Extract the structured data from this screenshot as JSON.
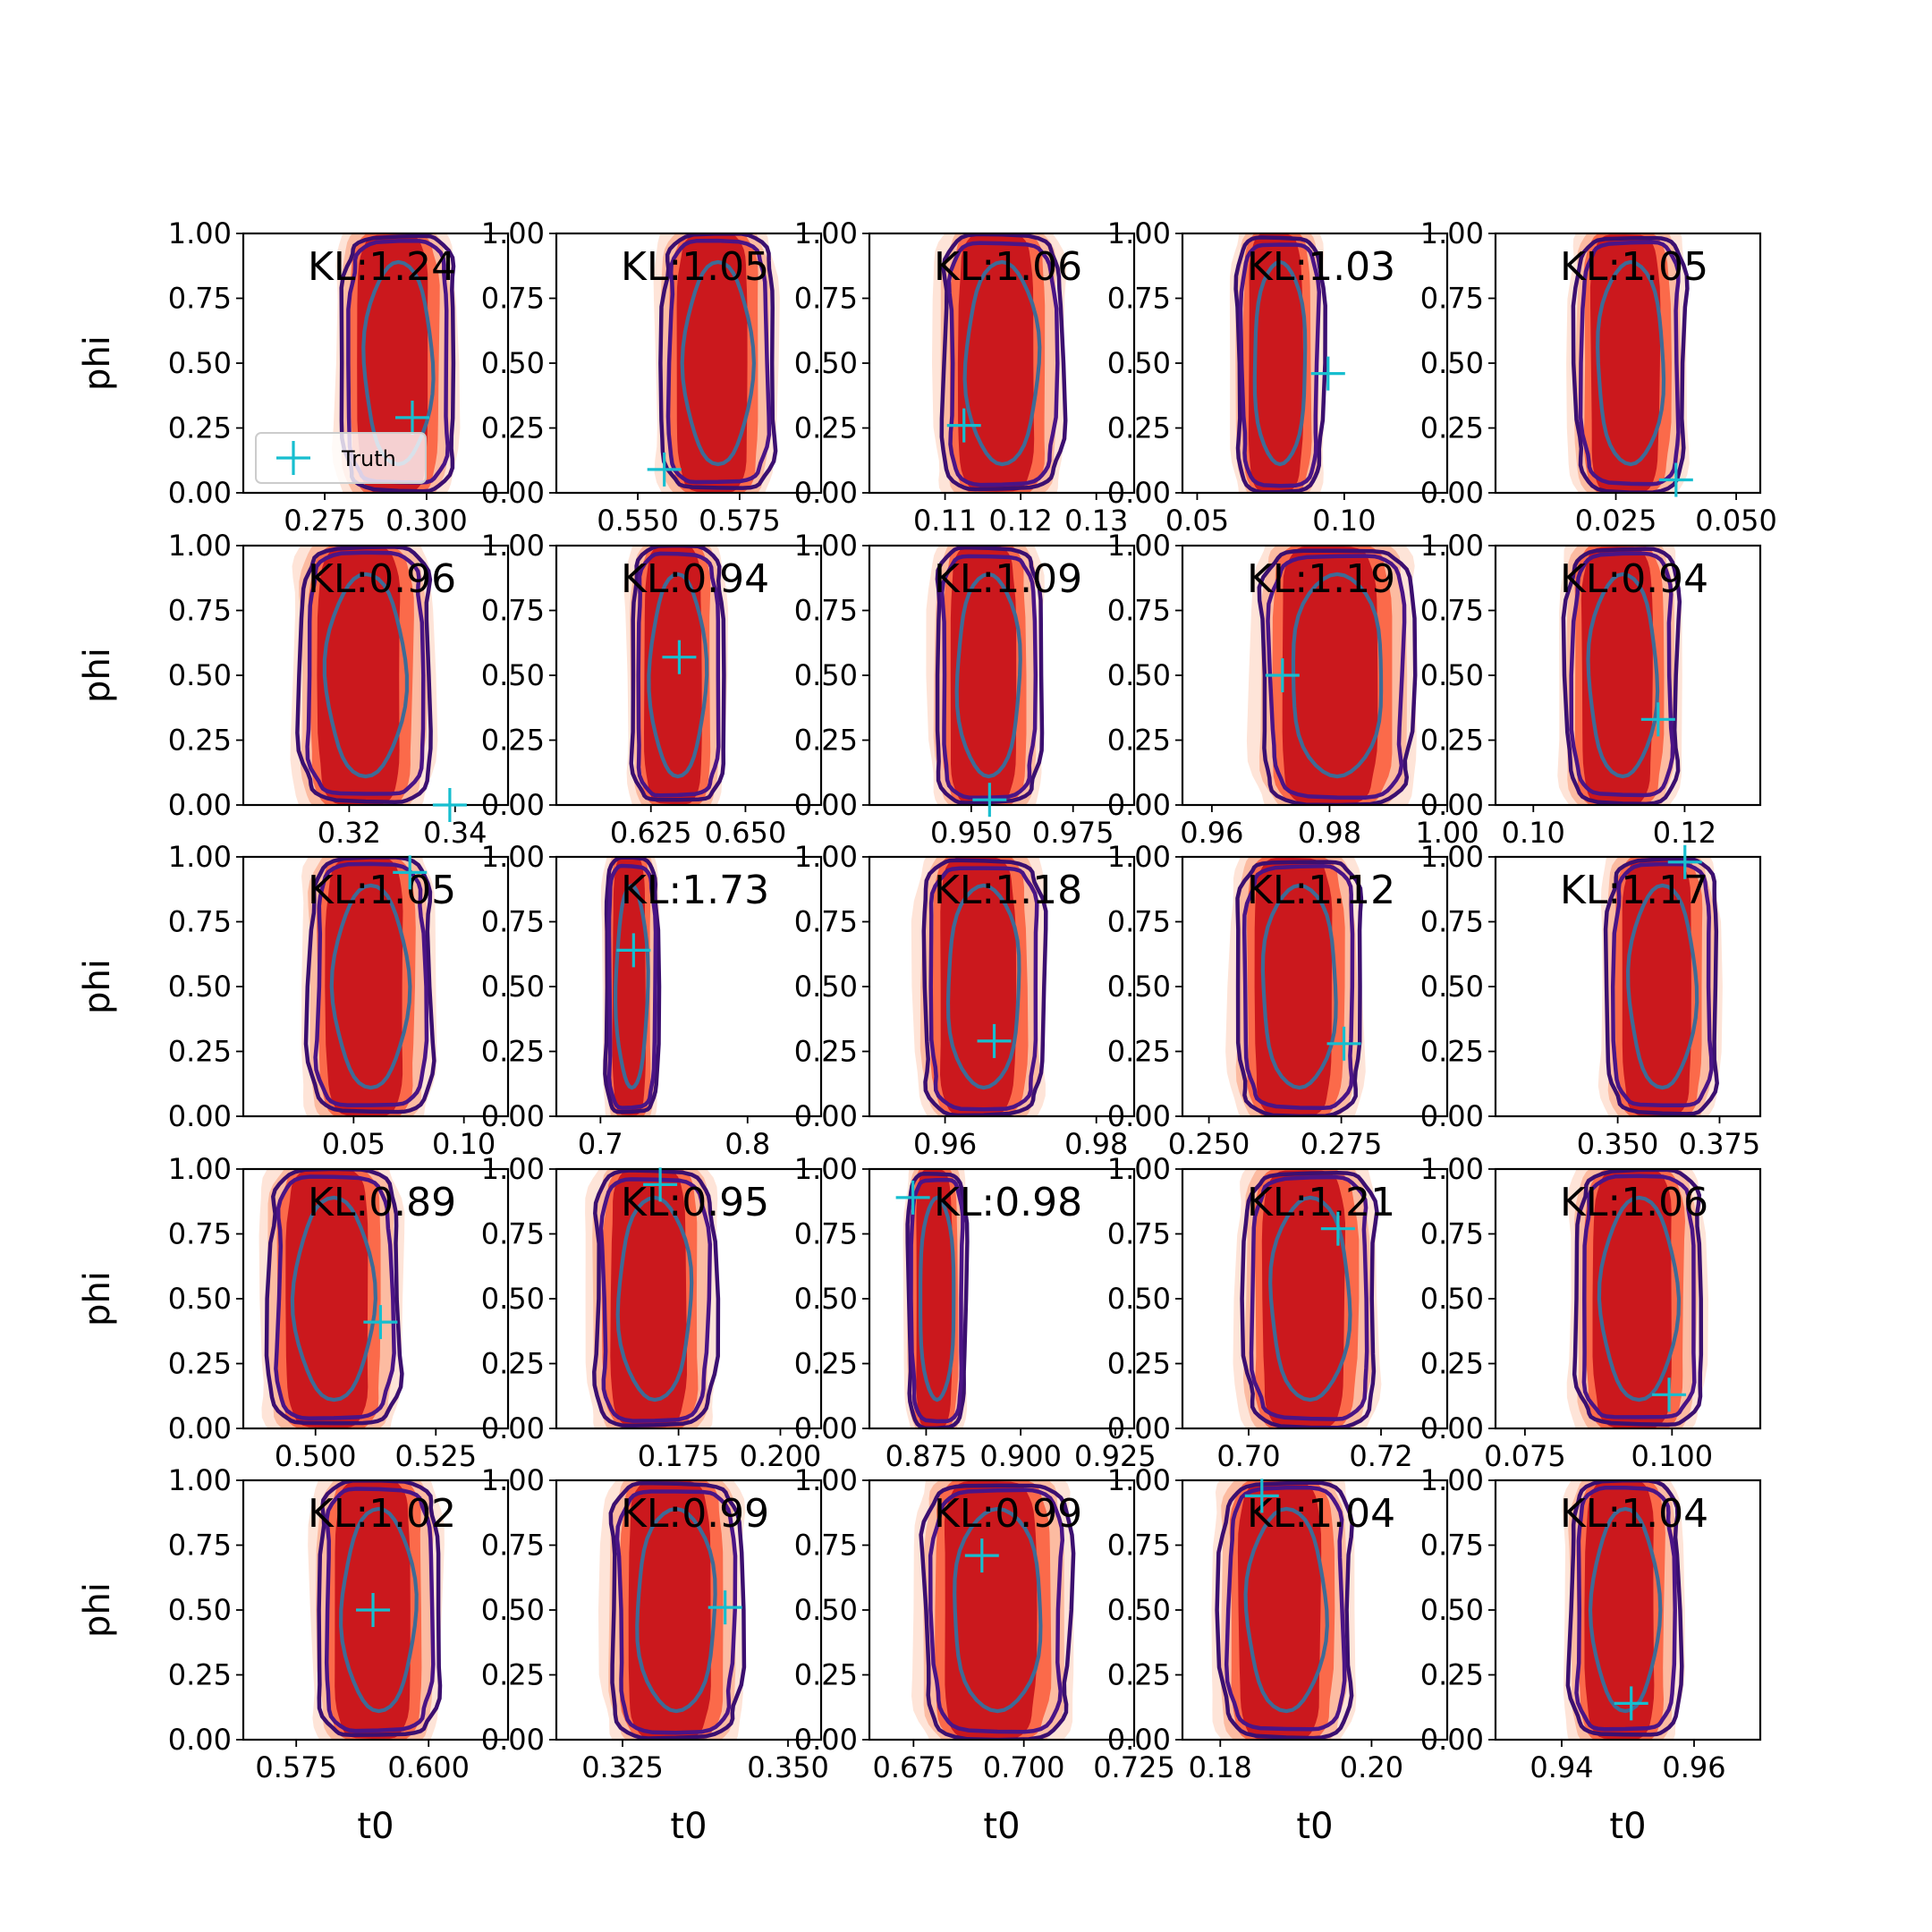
{
  "chart_data": {
    "type": "contour-grid",
    "rows": 5,
    "cols": 5,
    "xlabel": "t0",
    "ylabel": "phi",
    "ylim": [
      0,
      1
    ],
    "yticks": [
      "0.00",
      "0.25",
      "0.50",
      "0.75",
      "1.00"
    ],
    "legend": {
      "label": "Truth",
      "placement": "lower-left",
      "panel": 0
    },
    "colors": {
      "fill_outer": "#fee4d8",
      "fill_mid": "#fcbba1",
      "fill_inner": "#fb6a4a",
      "fill_core": "#cb181d",
      "contour_outer": "#3b0f70",
      "contour_mid": "#4a1486",
      "contour_inner": "#3e6b96",
      "truth": "#17becf"
    },
    "panels": [
      {
        "kl": "KL:1.24",
        "xmin": 0.255,
        "xmax": 0.32,
        "xticks": [
          "0.275",
          "0.300"
        ],
        "xtick_values": [
          0.275,
          0.3
        ],
        "truth": [
          0.2965,
          0.29
        ],
        "cx": 0.575,
        "w": 0.43
      },
      {
        "kl": "KL:1.05",
        "xmin": 0.53,
        "xmax": 0.595,
        "xticks": [
          "0.550",
          "0.575"
        ],
        "xtick_values": [
          0.55,
          0.575
        ],
        "truth": [
          0.5565,
          0.09
        ],
        "cx": 0.6,
        "w": 0.43
      },
      {
        "kl": "KL:1.06",
        "xmin": 0.1,
        "xmax": 0.135,
        "xticks": [
          "0.11",
          "0.12",
          "0.13"
        ],
        "xtick_values": [
          0.11,
          0.12,
          0.13
        ],
        "truth": [
          0.1125,
          0.26
        ],
        "cx": 0.49,
        "w": 0.46
      },
      {
        "kl": "KL:1.03",
        "xmin": 0.045,
        "xmax": 0.135,
        "xticks": [
          "0.05",
          "0.10"
        ],
        "xtick_values": [
          0.05,
          0.1
        ],
        "truth": [
          0.0945,
          0.46
        ],
        "cx": 0.36,
        "w": 0.33
      },
      {
        "kl": "KL:1.05",
        "xmin": 0.0,
        "xmax": 0.055,
        "xticks": [
          "0.025",
          "0.050"
        ],
        "xtick_values": [
          0.025,
          0.05
        ],
        "truth": [
          0.0375,
          0.05
        ],
        "cx": 0.5,
        "w": 0.42
      },
      {
        "kl": "KL:0.96",
        "xmin": 0.3,
        "xmax": 0.35,
        "xticks": [
          "0.32",
          "0.34"
        ],
        "xtick_values": [
          0.32,
          0.34
        ],
        "truth": [
          0.339,
          0.0
        ],
        "cx": 0.45,
        "w": 0.5
      },
      {
        "kl": "KL:0.94",
        "xmin": 0.6,
        "xmax": 0.67,
        "xticks": [
          "0.625",
          "0.650"
        ],
        "xtick_values": [
          0.625,
          0.65
        ],
        "truth": [
          0.6325,
          0.57
        ],
        "cx": 0.45,
        "w": 0.35
      },
      {
        "kl": "KL:1.09",
        "xmin": 0.925,
        "xmax": 0.99,
        "xticks": [
          "0.950",
          "0.975"
        ],
        "xtick_values": [
          0.95,
          0.975
        ],
        "truth": [
          0.9545,
          0.02
        ],
        "cx": 0.44,
        "w": 0.4
      },
      {
        "kl": "KL:1.19",
        "xmin": 0.955,
        "xmax": 1.0,
        "xticks": [
          "0.96",
          "0.98",
          "1.00"
        ],
        "xtick_values": [
          0.96,
          0.98,
          1.0
        ],
        "truth": [
          0.972,
          0.5
        ],
        "cx": 0.57,
        "w": 0.58
      },
      {
        "kl": "KL:0.94",
        "xmin": 0.095,
        "xmax": 0.13,
        "xticks": [
          "0.10",
          "0.12"
        ],
        "xtick_values": [
          0.1,
          0.12
        ],
        "truth": [
          0.1165,
          0.33
        ],
        "cx": 0.47,
        "w": 0.43
      },
      {
        "kl": "KL:1.05",
        "xmin": 0.0,
        "xmax": 0.12,
        "xticks": [
          "0.05",
          "0.10"
        ],
        "xtick_values": [
          0.05,
          0.1
        ],
        "truth": [
          0.0755,
          0.94
        ],
        "cx": 0.47,
        "w": 0.47
      },
      {
        "kl": "KL:1.73",
        "xmin": 0.67,
        "xmax": 0.85,
        "xticks": [
          "0.7",
          "0.8"
        ],
        "xtick_values": [
          0.7,
          0.8
        ],
        "truth": [
          0.7225,
          0.64
        ],
        "cx": 0.28,
        "w": 0.2
      },
      {
        "kl": "KL:1.18",
        "xmin": 0.95,
        "xmax": 0.985,
        "xticks": [
          "0.96",
          "0.98"
        ],
        "xtick_values": [
          0.96,
          0.98
        ],
        "truth": [
          0.9665,
          0.29
        ],
        "cx": 0.42,
        "w": 0.46
      },
      {
        "kl": "KL:1.12",
        "xmin": 0.245,
        "xmax": 0.295,
        "xticks": [
          "0.250",
          "0.275"
        ],
        "xtick_values": [
          0.25,
          0.275
        ],
        "truth": [
          0.2755,
          0.28
        ],
        "cx": 0.43,
        "w": 0.47
      },
      {
        "kl": "KL:1.17",
        "xmin": 0.32,
        "xmax": 0.385,
        "xticks": [
          "0.350",
          "0.375"
        ],
        "xtick_values": [
          0.35,
          0.375
        ],
        "truth": [
          0.3665,
          0.98
        ],
        "cx": 0.62,
        "w": 0.42
      },
      {
        "kl": "KL:0.89",
        "xmin": 0.485,
        "xmax": 0.54,
        "xticks": [
          "0.500",
          "0.525"
        ],
        "xtick_values": [
          0.5,
          0.525
        ],
        "truth": [
          0.5135,
          0.41
        ],
        "cx": 0.33,
        "w": 0.5
      },
      {
        "kl": "KL:0.95",
        "xmin": 0.145,
        "xmax": 0.21,
        "xticks": [
          "0.175",
          "0.200"
        ],
        "xtick_values": [
          0.175,
          0.2
        ],
        "truth": [
          0.1705,
          0.94
        ],
        "cx": 0.36,
        "w": 0.46
      },
      {
        "kl": "KL:0.98",
        "xmin": 0.86,
        "xmax": 0.93,
        "xticks": [
          "0.875",
          "0.900",
          "0.925"
        ],
        "xtick_values": [
          0.875,
          0.9,
          0.925
        ],
        "truth": [
          0.8715,
          0.89
        ],
        "cx": 0.25,
        "w": 0.22
      },
      {
        "kl": "KL:1.21",
        "xmin": 0.69,
        "xmax": 0.73,
        "xticks": [
          "0.70",
          "0.72"
        ],
        "xtick_values": [
          0.7,
          0.72
        ],
        "truth": [
          0.7135,
          0.77
        ],
        "cx": 0.47,
        "w": 0.5
      },
      {
        "kl": "KL:1.06",
        "xmin": 0.07,
        "xmax": 0.115,
        "xticks": [
          "0.075",
          "0.100"
        ],
        "xtick_values": [
          0.075,
          0.1
        ],
        "truth": [
          0.0995,
          0.13
        ],
        "cx": 0.53,
        "w": 0.48
      },
      {
        "kl": "KL:1.02",
        "xmin": 0.565,
        "xmax": 0.615,
        "xticks": [
          "0.575",
          "0.600"
        ],
        "xtick_values": [
          0.575,
          0.6
        ],
        "truth": [
          0.5895,
          0.5
        ],
        "cx": 0.5,
        "w": 0.46
      },
      {
        "kl": "KL:0.99",
        "xmin": 0.315,
        "xmax": 0.355,
        "xticks": [
          "0.325",
          "0.350"
        ],
        "xtick_values": [
          0.325,
          0.35
        ],
        "truth": [
          0.3405,
          0.51
        ],
        "cx": 0.44,
        "w": 0.5
      },
      {
        "kl": "KL:0.99",
        "xmin": 0.665,
        "xmax": 0.725,
        "xticks": [
          "0.675",
          "0.700",
          "0.725"
        ],
        "xtick_values": [
          0.675,
          0.7,
          0.725
        ],
        "truth": [
          0.6905,
          0.71
        ],
        "cx": 0.47,
        "w": 0.56
      },
      {
        "kl": "KL:1.04",
        "xmin": 0.175,
        "xmax": 0.21,
        "xticks": [
          "0.18",
          "0.20"
        ],
        "xtick_values": [
          0.18,
          0.2
        ],
        "truth": [
          0.1855,
          0.94
        ],
        "cx": 0.38,
        "w": 0.5
      },
      {
        "kl": "KL:1.04",
        "xmin": 0.93,
        "xmax": 0.97,
        "xticks": [
          "0.94",
          "0.96"
        ],
        "xtick_values": [
          0.94,
          0.96
        ],
        "truth": [
          0.9505,
          0.14
        ],
        "cx": 0.48,
        "w": 0.42
      }
    ]
  }
}
